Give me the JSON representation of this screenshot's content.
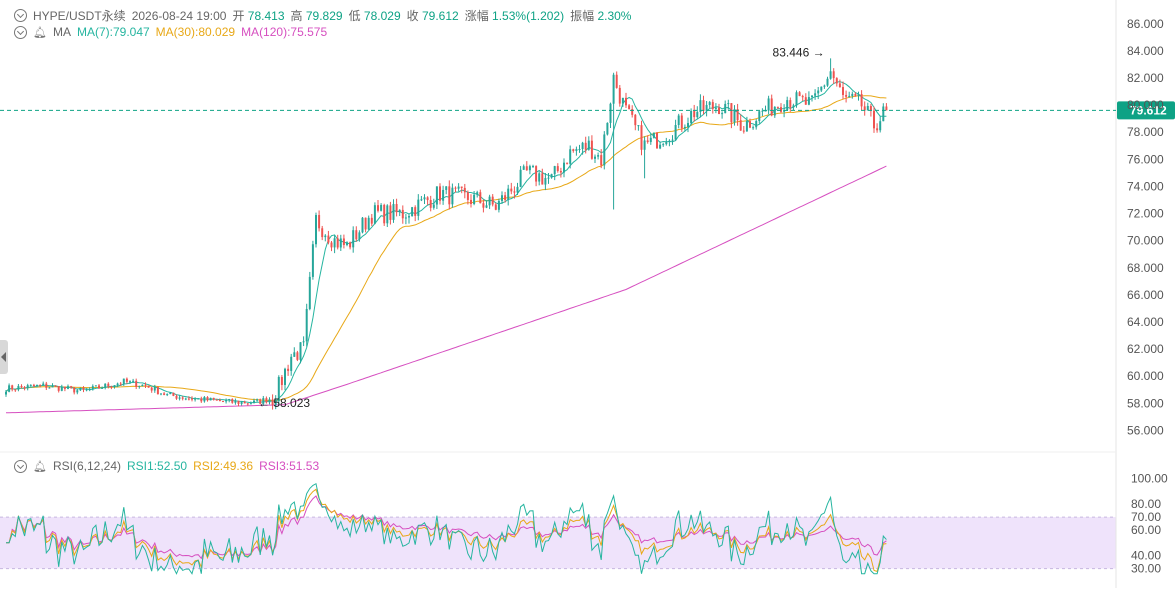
{
  "header": {
    "symbol": "HYPE/USDT永续",
    "datetime": "2026-08-24 19:00",
    "open_label": "开",
    "open": "78.413",
    "high_label": "高",
    "high": "79.829",
    "low_label": "低",
    "low": "78.029",
    "close_label": "收",
    "close": "79.612",
    "change_label": "涨幅",
    "change": "1.53%(1.202)",
    "amplitude_label": "振幅",
    "amplitude": "2.30%"
  },
  "ma_legend": {
    "title": "MA",
    "ma7": "MA(7):79.047",
    "ma30": "MA(30):80.029",
    "ma120": "MA(120):75.575"
  },
  "rsi_legend": {
    "title": "RSI(6,12,24)",
    "rsi1": "RSI1:52.50",
    "rsi2": "RSI2:49.36",
    "rsi3": "RSI3:51.53"
  },
  "colors": {
    "up": "#26a69a",
    "down": "#ef5350",
    "ma7": "#26b5a0",
    "ma30": "#e8a817",
    "ma120": "#d64fc0",
    "price_line": "#0ea285",
    "rsi_band": "#efe3fb"
  },
  "chart_data": [
    {
      "type": "candlestick",
      "price_axis_ticks": [
        "86.000",
        "84.000",
        "82.000",
        "80.000",
        "78.000",
        "76.000",
        "74.000",
        "72.000",
        "70.000",
        "68.000",
        "66.000",
        "64.000",
        "62.000",
        "60.000",
        "58.000",
        "56.000"
      ],
      "ylim": [
        55,
        86.5
      ],
      "current_price": "79.612",
      "high_annotation": "83.446",
      "low_annotation": "58.023",
      "anchors": [
        [
          0,
          59.1
        ],
        [
          12,
          59.3
        ],
        [
          25,
          58.9
        ],
        [
          38,
          59.6
        ],
        [
          45,
          59.3
        ],
        [
          52,
          58.6
        ],
        [
          62,
          58.3
        ],
        [
          72,
          58.1
        ],
        [
          80,
          58.05
        ],
        [
          86,
          58.4
        ],
        [
          88,
          59.2
        ],
        [
          92,
          61.5
        ],
        [
          96,
          62.0
        ],
        [
          100,
          71.5
        ],
        [
          106,
          70.0
        ],
        [
          110,
          69.6
        ],
        [
          118,
          72.0
        ],
        [
          128,
          72.0
        ],
        [
          140,
          73.5
        ],
        [
          152,
          73.0
        ],
        [
          158,
          72.5
        ],
        [
          168,
          75.0
        ],
        [
          176,
          74.5
        ],
        [
          182,
          76.5
        ],
        [
          188,
          77.0
        ],
        [
          192,
          76.0
        ],
        [
          196,
          82.0
        ],
        [
          200,
          79.5
        ],
        [
          206,
          77.0
        ],
        [
          214,
          78.0
        ],
        [
          222,
          79.5
        ],
        [
          230,
          80.0
        ],
        [
          238,
          78.5
        ],
        [
          244,
          79.5
        ],
        [
          252,
          80.5
        ],
        [
          260,
          80.0
        ],
        [
          266,
          82.5
        ],
        [
          270,
          80.5
        ],
        [
          276,
          80.0
        ],
        [
          280,
          78.5
        ],
        [
          284,
          79.6
        ]
      ],
      "ma120_anchors": [
        [
          0,
          57.3
        ],
        [
          90,
          57.9
        ],
        [
          110,
          59.4
        ],
        [
          200,
          66.4
        ],
        [
          284,
          75.5
        ]
      ]
    },
    {
      "type": "line",
      "name": "RSI(6,12,24)",
      "rsi_axis_ticks": [
        "100.00",
        "80.00",
        "70.00",
        "60.00",
        "40.00",
        "30.00"
      ],
      "ylim": [
        25,
        105
      ],
      "band": [
        30,
        70
      ],
      "last_values": {
        "rsi1": 52.5,
        "rsi2": 49.36,
        "rsi3": 51.53
      }
    }
  ]
}
